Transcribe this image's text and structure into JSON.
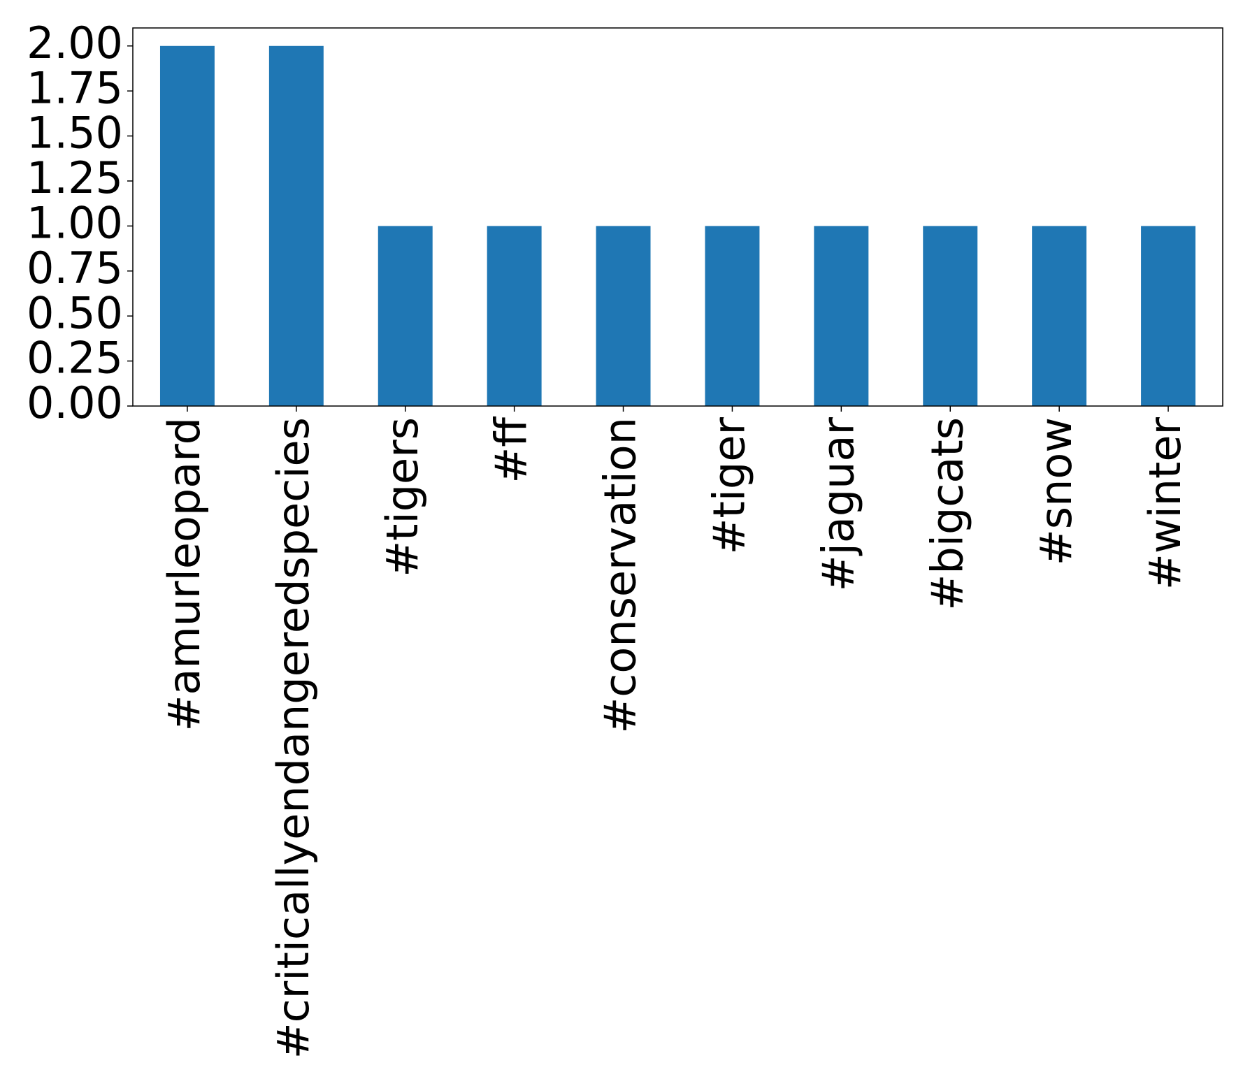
{
  "chart_data": {
    "type": "bar",
    "categories": [
      "#amurleopard",
      "#criticallyendangeredspecies",
      "#tigers",
      "#ff",
      "#conservation",
      "#tiger",
      "#jaguar",
      "#bigcats",
      "#snow",
      "#winter"
    ],
    "values": [
      2,
      2,
      1,
      1,
      1,
      1,
      1,
      1,
      1,
      1
    ],
    "color": "#1f77b4",
    "ylim": [
      0,
      2.1
    ],
    "yticks": [
      {
        "value": 0,
        "label": "0.00"
      },
      {
        "value": 0.25,
        "label": "0.25"
      },
      {
        "value": 0.5,
        "label": "0.50"
      },
      {
        "value": 0.75,
        "label": "0.75"
      },
      {
        "value": 1,
        "label": "1.00"
      },
      {
        "value": 1.25,
        "label": "1.25"
      },
      {
        "value": 1.5,
        "label": "1.50"
      },
      {
        "value": 1.75,
        "label": "1.75"
      },
      {
        "value": 2,
        "label": "2.00"
      }
    ],
    "grid": false
  }
}
